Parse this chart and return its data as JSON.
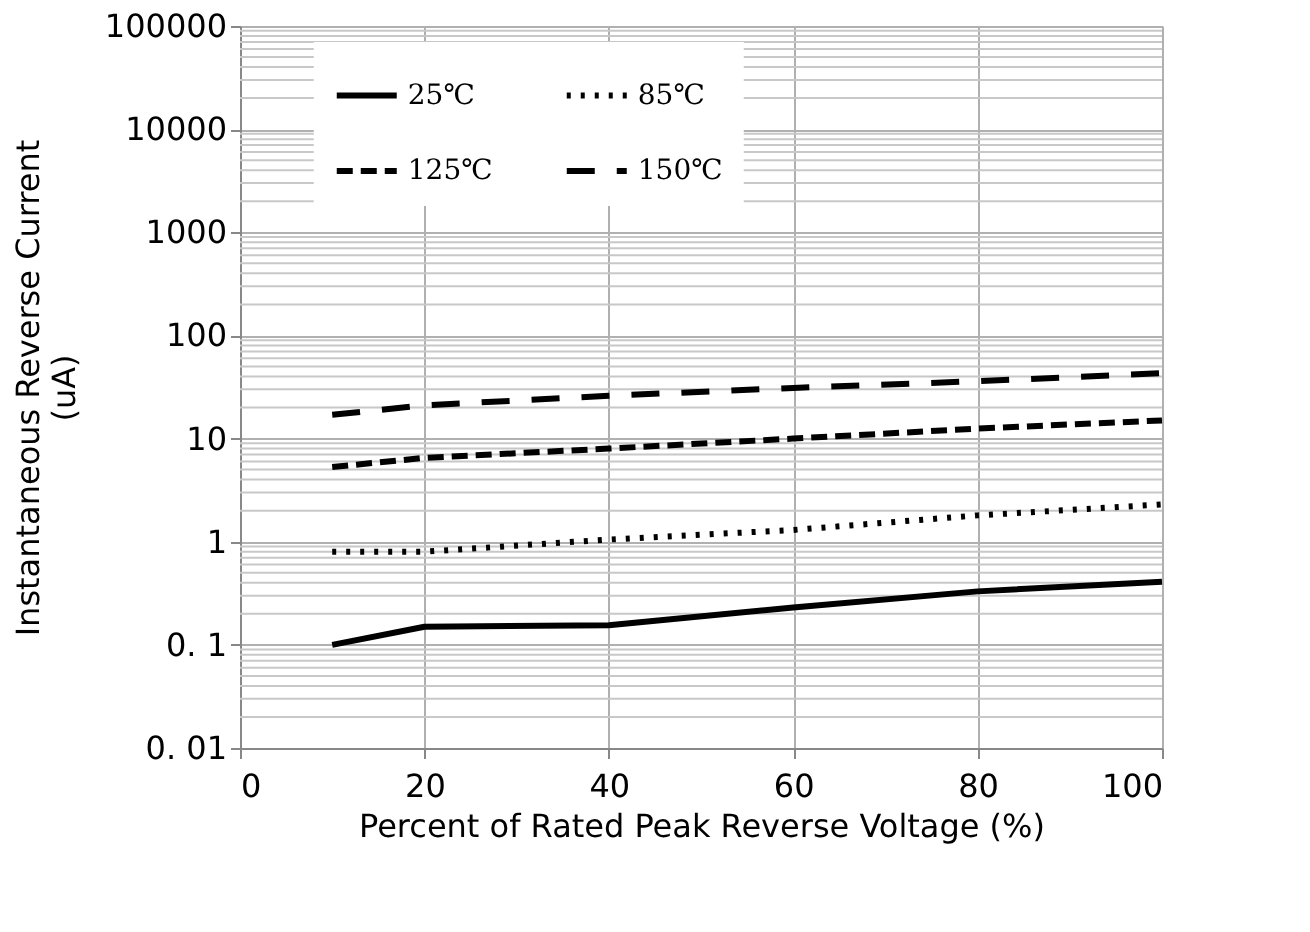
{
  "chart_data": {
    "type": "line",
    "xlabel": "Percent of Rated Peak  Reverse Voltage (%)",
    "ylabel": "Instantaneous Reverse Current\n(uA)",
    "x": [
      10,
      20,
      40,
      60,
      80,
      100
    ],
    "series": [
      {
        "name": "25℃",
        "color": "#000000",
        "line_style": "solid",
        "values": [
          0.1,
          0.15,
          0.155,
          0.23,
          0.33,
          0.41
        ]
      },
      {
        "name": "85℃",
        "color": "#000000",
        "line_style": "dotted",
        "values": [
          0.8,
          0.8,
          1.05,
          1.3,
          1.8,
          2.3
        ]
      },
      {
        "name": "125℃",
        "color": "#000000",
        "line_style": "dashed",
        "values": [
          5.3,
          6.5,
          8,
          10,
          12.5,
          15
        ]
      },
      {
        "name": "150℃",
        "color": "#000000",
        "line_style": "dashed",
        "values": [
          17,
          21,
          26,
          31,
          36,
          43
        ]
      }
    ],
    "xlim": [
      0,
      100
    ],
    "xticks": [
      0,
      20,
      40,
      60,
      80,
      100
    ],
    "ylim": [
      0.01,
      100000
    ],
    "log": true,
    "yticks": [
      {
        "value": 0.01,
        "label": "0. 01"
      },
      {
        "value": 0.1,
        "label": "0. 1"
      },
      1,
      10,
      100,
      1000,
      10000,
      100000
    ],
    "grid": true,
    "legend": "top",
    "marker": "none"
  }
}
